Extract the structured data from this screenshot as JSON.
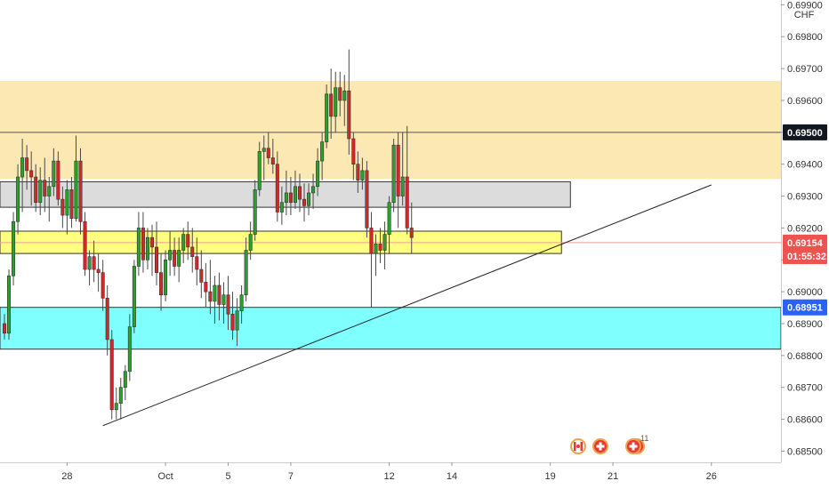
{
  "chart_data": {
    "type": "candlestick",
    "currency_label": "CHF",
    "price_axis": {
      "ylim": [
        0.68465,
        0.69915
      ],
      "ticks": [
        "0.69900",
        "0.69800",
        "0.69700",
        "0.69600",
        "0.69500",
        "0.69400",
        "0.69300",
        "0.69200",
        "0.69100",
        "0.69000",
        "0.68900",
        "0.68800",
        "0.68700",
        "0.68600",
        "0.68500"
      ],
      "tick_values": [
        0.699,
        0.698,
        0.697,
        0.696,
        0.695,
        0.694,
        0.693,
        0.692,
        0.691,
        0.69,
        0.689,
        0.688,
        0.687,
        0.686,
        0.685
      ]
    },
    "time_axis": {
      "ticks": [
        {
          "label": "28",
          "index": 14
        },
        {
          "label": "Oct",
          "index": 36
        },
        {
          "label": "5",
          "index": 50
        },
        {
          "label": "7",
          "index": 64
        },
        {
          "label": "12",
          "index": 86
        },
        {
          "label": "14",
          "index": 100
        },
        {
          "label": "19",
          "index": 122
        },
        {
          "label": "21",
          "index": 136
        },
        {
          "label": "26",
          "index": 158
        }
      ]
    },
    "price_badges": [
      {
        "label": "0.69500",
        "value": 0.695,
        "bg": "#131722",
        "fg": "#ffffff"
      },
      {
        "label": "0.69154",
        "value": 0.69154,
        "bg": "#ef5350",
        "fg": "#ffffff"
      },
      {
        "label": "01:55:32",
        "value": 0.69112,
        "bg": "#ef5350",
        "fg": "#ffffff"
      },
      {
        "label": "0.68951",
        "value": 0.68951,
        "bg": "#2962ff",
        "fg": "#ffffff"
      }
    ],
    "zones": [
      {
        "name": "supply-zone",
        "top": 0.6966,
        "bottom": 0.69355,
        "x_end": null,
        "fill": "#fce8b2",
        "stroke": "#fce8b2"
      },
      {
        "name": "resistance-zone",
        "top": 0.69345,
        "bottom": 0.69265,
        "x_end": 126.5,
        "fill": "#dcdcdc",
        "stroke": "#333333"
      },
      {
        "name": "pivot-zone",
        "top": 0.6919,
        "bottom": 0.6912,
        "x_end": 124.5,
        "fill": "#ffff80",
        "stroke": "#333333"
      },
      {
        "name": "demand-zone",
        "top": 0.68951,
        "bottom": 0.6882,
        "x_end": null,
        "fill": "#80ffff",
        "stroke": "#333333"
      }
    ],
    "hlines": [
      {
        "name": "level-line",
        "value": 0.695,
        "color": "#555555"
      },
      {
        "name": "current-price-line",
        "value": 0.69154,
        "color": "#ef9a9a"
      }
    ],
    "trendline": {
      "x1": 22,
      "y1": 0.6858,
      "x2": 158,
      "y2": 0.69335,
      "color": "#222222"
    },
    "colors": {
      "up": "#26a69a",
      "down": "#ef5350",
      "up_fill": "#2ca02c",
      "down_fill": "#d62728"
    },
    "candles": [
      [
        0.689,
        0.6893,
        0.6885,
        0.6887
      ],
      [
        0.6887,
        0.6907,
        0.6885,
        0.6905
      ],
      [
        0.6905,
        0.6925,
        0.6902,
        0.6922
      ],
      [
        0.6922,
        0.694,
        0.6918,
        0.6936
      ],
      [
        0.6936,
        0.6948,
        0.6925,
        0.6942
      ],
      [
        0.6942,
        0.6946,
        0.6932,
        0.6938
      ],
      [
        0.6938,
        0.6944,
        0.6927,
        0.6936
      ],
      [
        0.6936,
        0.694,
        0.6925,
        0.6928
      ],
      [
        0.6928,
        0.6939,
        0.6924,
        0.6935
      ],
      [
        0.6935,
        0.6942,
        0.6925,
        0.693
      ],
      [
        0.693,
        0.6936,
        0.6922,
        0.6933
      ],
      [
        0.6933,
        0.6945,
        0.693,
        0.6941
      ],
      [
        0.6941,
        0.6944,
        0.6927,
        0.6929
      ],
      [
        0.6929,
        0.6933,
        0.692,
        0.6924
      ],
      [
        0.6924,
        0.6935,
        0.6918,
        0.6932
      ],
      [
        0.6932,
        0.6936,
        0.692,
        0.6923
      ],
      [
        0.6923,
        0.6949,
        0.6922,
        0.6941
      ],
      [
        0.6941,
        0.6945,
        0.6918,
        0.6922
      ],
      [
        0.6922,
        0.6925,
        0.6905,
        0.6907
      ],
      [
        0.6907,
        0.6913,
        0.6902,
        0.6911
      ],
      [
        0.6911,
        0.6916,
        0.6903,
        0.6907
      ],
      [
        0.6907,
        0.6912,
        0.69,
        0.6906
      ],
      [
        0.6906,
        0.691,
        0.6894,
        0.6898
      ],
      [
        0.6898,
        0.6902,
        0.688,
        0.6885
      ],
      [
        0.6885,
        0.6888,
        0.686,
        0.6863
      ],
      [
        0.6863,
        0.687,
        0.686,
        0.6865
      ],
      [
        0.6865,
        0.6873,
        0.686,
        0.687
      ],
      [
        0.687,
        0.6877,
        0.6866,
        0.6875
      ],
      [
        0.6875,
        0.6893,
        0.6872,
        0.6889
      ],
      [
        0.6889,
        0.691,
        0.6887,
        0.6908
      ],
      [
        0.6908,
        0.6925,
        0.6905,
        0.692
      ],
      [
        0.692,
        0.6925,
        0.6906,
        0.691
      ],
      [
        0.691,
        0.692,
        0.6907,
        0.6917
      ],
      [
        0.6917,
        0.6921,
        0.6905,
        0.6914
      ],
      [
        0.6914,
        0.6922,
        0.6902,
        0.6906
      ],
      [
        0.6906,
        0.6912,
        0.6894,
        0.6899
      ],
      [
        0.6899,
        0.6913,
        0.6897,
        0.691
      ],
      [
        0.691,
        0.6919,
        0.6905,
        0.6913
      ],
      [
        0.6913,
        0.6917,
        0.6905,
        0.6908
      ],
      [
        0.6908,
        0.6917,
        0.6903,
        0.6913
      ],
      [
        0.6913,
        0.692,
        0.6909,
        0.6918
      ],
      [
        0.6918,
        0.6922,
        0.691,
        0.6914
      ],
      [
        0.6914,
        0.692,
        0.6906,
        0.6911
      ],
      [
        0.6911,
        0.6917,
        0.6902,
        0.6907
      ],
      [
        0.6907,
        0.6913,
        0.6898,
        0.6903
      ],
      [
        0.6903,
        0.6909,
        0.6895,
        0.69
      ],
      [
        0.69,
        0.691,
        0.6893,
        0.6897
      ],
      [
        0.6897,
        0.6905,
        0.689,
        0.6902
      ],
      [
        0.6902,
        0.6906,
        0.6891,
        0.6896
      ],
      [
        0.6896,
        0.6903,
        0.689,
        0.6899
      ],
      [
        0.6899,
        0.6905,
        0.6888,
        0.6893
      ],
      [
        0.6893,
        0.69,
        0.6885,
        0.6888
      ],
      [
        0.6888,
        0.6898,
        0.6883,
        0.6894
      ],
      [
        0.6894,
        0.6902,
        0.689,
        0.6899
      ],
      [
        0.6899,
        0.6917,
        0.6897,
        0.6913
      ],
      [
        0.6913,
        0.6922,
        0.691,
        0.6918
      ],
      [
        0.6918,
        0.6935,
        0.6916,
        0.6932
      ],
      [
        0.6932,
        0.6947,
        0.693,
        0.6944
      ],
      [
        0.6944,
        0.6949,
        0.6935,
        0.6945
      ],
      [
        0.6945,
        0.695,
        0.694,
        0.6942
      ],
      [
        0.6942,
        0.6948,
        0.6937,
        0.694
      ],
      [
        0.694,
        0.6944,
        0.6922,
        0.6925
      ],
      [
        0.6925,
        0.6933,
        0.6921,
        0.6928
      ],
      [
        0.6928,
        0.6938,
        0.6924,
        0.6931
      ],
      [
        0.6931,
        0.6936,
        0.6924,
        0.6928
      ],
      [
        0.6928,
        0.6938,
        0.6926,
        0.6933
      ],
      [
        0.6933,
        0.6937,
        0.6925,
        0.6929
      ],
      [
        0.6929,
        0.6934,
        0.6922,
        0.6927
      ],
      [
        0.6927,
        0.6934,
        0.6924,
        0.6931
      ],
      [
        0.6931,
        0.6937,
        0.6926,
        0.6933
      ],
      [
        0.6933,
        0.6945,
        0.693,
        0.6941
      ],
      [
        0.6941,
        0.695,
        0.6935,
        0.6947
      ],
      [
        0.6947,
        0.6965,
        0.6945,
        0.6962
      ],
      [
        0.6962,
        0.697,
        0.6948,
        0.6955
      ],
      [
        0.6955,
        0.6969,
        0.695,
        0.6964
      ],
      [
        0.6964,
        0.6969,
        0.6955,
        0.696
      ],
      [
        0.696,
        0.6968,
        0.6952,
        0.6963
      ],
      [
        0.6963,
        0.6976,
        0.6943,
        0.6948
      ],
      [
        0.6948,
        0.695,
        0.6935,
        0.694
      ],
      [
        0.694,
        0.6944,
        0.6931,
        0.6935
      ],
      [
        0.6935,
        0.6942,
        0.6932,
        0.6938
      ],
      [
        0.6938,
        0.6941,
        0.6917,
        0.692
      ],
      [
        0.692,
        0.6925,
        0.6895,
        0.6912
      ],
      [
        0.6912,
        0.6918,
        0.6905,
        0.6915
      ],
      [
        0.6915,
        0.692,
        0.6909,
        0.6913
      ],
      [
        0.6913,
        0.6922,
        0.6907,
        0.6918
      ],
      [
        0.6918,
        0.693,
        0.6912,
        0.6928
      ],
      [
        0.6928,
        0.6948,
        0.6925,
        0.6946
      ],
      [
        0.6946,
        0.695,
        0.692,
        0.693
      ],
      [
        0.693,
        0.695,
        0.6927,
        0.6936
      ],
      [
        0.6936,
        0.6952,
        0.6918,
        0.692
      ],
      [
        0.692,
        0.6928,
        0.6912,
        0.6917
      ]
    ]
  }
}
